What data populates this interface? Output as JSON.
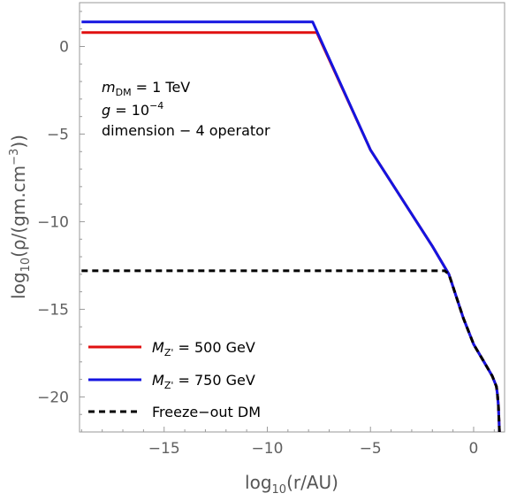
{
  "chart_data": {
    "type": "line",
    "xlabel": {
      "prefix": "log",
      "sub": "10",
      "suffix": "(r/AU)"
    },
    "ylabel": {
      "prefix": "log",
      "sub": "10",
      "suffix": "(ρ/(gm.cm",
      "sup": "−3",
      "close": "))"
    },
    "xlim": [
      -19.1,
      1.5
    ],
    "ylim": [
      -22.0,
      2.5
    ],
    "x_ticks": [
      -15,
      -10,
      -5,
      0
    ],
    "x_tick_labels": [
      "−15",
      "−10",
      "−5",
      "0"
    ],
    "y_ticks": [
      0,
      -5,
      -10,
      -15,
      -20
    ],
    "y_tick_labels": [
      "0",
      "−5",
      "−10",
      "−15",
      "−20"
    ],
    "annotations": {
      "mass": {
        "sym": "m",
        "sub": "DM",
        "rest": " = 1 TeV"
      },
      "coupling": {
        "sym": "g",
        "rest": " = 10",
        "sup": "−4"
      },
      "operator": "dimension − 4 operator"
    },
    "legend_position": "bottom-left",
    "series": [
      {
        "name": "M_Z' = 500 GeV",
        "legend": {
          "sym": "M",
          "sub": "Z'",
          "rest": " = 500 GeV"
        },
        "color": "#e01010",
        "dash": "solid",
        "x": [
          -19.0,
          -7.9,
          -7.6,
          -5.0,
          -2.0,
          -1.2,
          -0.5,
          0.0,
          0.5,
          0.9,
          1.1,
          1.15,
          1.2,
          1.25
        ],
        "y": [
          0.8,
          0.8,
          0.8,
          -5.9,
          -11.4,
          -13.0,
          -15.5,
          -17.0,
          -18.0,
          -18.8,
          -19.4,
          -19.8,
          -20.5,
          -22.0
        ]
      },
      {
        "name": "M_Z' = 750 GeV",
        "legend": {
          "sym": "M",
          "sub": "Z'",
          "rest": " = 750 GeV"
        },
        "color": "#1414e0",
        "dash": "solid",
        "x": [
          -19.0,
          -7.8,
          -5.0,
          -2.0,
          -1.2,
          -0.5,
          0.0,
          0.5,
          0.9,
          1.1,
          1.15,
          1.2,
          1.25
        ],
        "y": [
          1.4,
          1.4,
          -5.9,
          -11.4,
          -13.0,
          -15.5,
          -17.0,
          -18.0,
          -18.8,
          -19.4,
          -19.8,
          -20.5,
          -22.0
        ]
      },
      {
        "name": "Freeze-out DM",
        "legend": {
          "sym": "",
          "sub": "",
          "rest": "Freeze−out DM"
        },
        "color": "#000000",
        "dash": "dashed",
        "x": [
          -19.0,
          -1.4,
          -1.2,
          -0.5,
          0.0,
          0.5,
          0.9,
          1.1,
          1.15,
          1.2,
          1.25
        ],
        "y": [
          -12.8,
          -12.8,
          -13.0,
          -15.5,
          -17.0,
          -18.0,
          -18.8,
          -19.4,
          -19.8,
          -20.5,
          -22.0
        ]
      }
    ]
  }
}
